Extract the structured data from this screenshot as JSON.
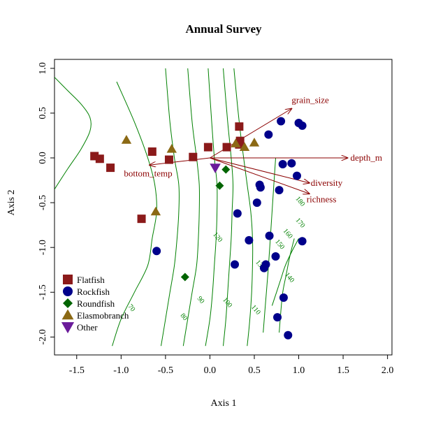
{
  "chart_data": {
    "type": "scatter",
    "title": "Annual Survey",
    "xlabel": "Axis 1",
    "ylabel": "Axis 2",
    "xlim": [
      -1.75,
      2.05
    ],
    "ylim": [
      -2.2,
      1.1
    ],
    "xticks": [
      -1.5,
      -1.0,
      -0.5,
      0.0,
      0.5,
      1.0,
      1.5,
      2.0
    ],
    "xtick_labels": [
      "-1.5",
      "-1.0",
      "-0.5",
      "0.0",
      "0.5",
      "1.0",
      "1.5",
      "2.0"
    ],
    "yticks": [
      -2.0,
      -1.5,
      -1.0,
      -0.5,
      0.0,
      0.5,
      1.0
    ],
    "ytick_labels": [
      "-2.0",
      "-1.5",
      "-1.0",
      "-0.5",
      "0.0",
      "0.5",
      "1.0"
    ],
    "grid": false,
    "legend_position": "bottom-left",
    "colors": {
      "Flatfish": "#8b1a1a",
      "Rockfish": "#00008b",
      "Roundfish": "#006400",
      "Elasmobranch": "#8b6914",
      "Other": "#6a1b9a",
      "contour": "#008000",
      "arrow": "#8b0000"
    },
    "series": [
      {
        "name": "Flatfish",
        "marker": "square",
        "x": [
          -1.3,
          -1.24,
          -1.12,
          -0.77,
          -0.65,
          -0.46,
          -0.19,
          -0.02,
          0.19,
          0.33,
          0.34,
          0.33
        ],
        "y": [
          0.02,
          -0.01,
          -0.11,
          -0.68,
          0.07,
          -0.02,
          0.01,
          0.12,
          0.12,
          0.15,
          0.19,
          0.35
        ]
      },
      {
        "name": "Rockfish",
        "marker": "circle",
        "x": [
          0.8,
          0.66,
          1.0,
          1.04,
          0.82,
          0.92,
          0.98,
          0.57,
          0.56,
          0.78,
          0.53,
          0.31,
          0.44,
          0.67,
          1.04,
          0.74,
          0.63,
          0.28,
          0.61,
          0.83,
          0.76,
          0.88,
          -0.6
        ],
        "y": [
          0.41,
          0.26,
          0.39,
          0.36,
          -0.07,
          -0.06,
          -0.2,
          -0.33,
          -0.3,
          -0.36,
          -0.5,
          -0.62,
          -0.92,
          -0.87,
          -0.93,
          -1.1,
          -1.19,
          -1.19,
          -1.23,
          -1.56,
          -1.78,
          -1.98,
          -1.04
        ]
      },
      {
        "name": "Roundfish",
        "marker": "diamond",
        "x": [
          0.18,
          0.11,
          -0.28
        ],
        "y": [
          -0.13,
          -0.31,
          -1.33
        ]
      },
      {
        "name": "Elasmobranch",
        "marker": "triangle-up",
        "x": [
          -0.94,
          -0.43,
          -0.61,
          0.29,
          0.39,
          0.5
        ],
        "y": [
          0.2,
          0.1,
          -0.6,
          0.16,
          0.12,
          0.17
        ]
      },
      {
        "name": "Other",
        "marker": "triangle-down",
        "x": [
          0.06
        ],
        "y": [
          -0.11
        ]
      }
    ],
    "vectors": [
      {
        "label": "grain_size",
        "x": 0.92,
        "y": 0.55
      },
      {
        "label": "depth_m",
        "x": 1.55,
        "y": 0.0
      },
      {
        "label": "bottom_temp",
        "x": -0.68,
        "y": -0.08
      },
      {
        "label": "diversity",
        "x": 1.12,
        "y": -0.28
      },
      {
        "label": "richness",
        "x": 1.12,
        "y": -0.4
      }
    ],
    "contour_labels": [
      {
        "label": "70",
        "x": -0.9,
        "y": -1.69
      },
      {
        "label": "80",
        "x": -0.31,
        "y": -1.79
      },
      {
        "label": "90",
        "x": -0.12,
        "y": -1.6
      },
      {
        "label": "100",
        "x": 0.18,
        "y": -1.63
      },
      {
        "label": "110",
        "x": 0.5,
        "y": -1.71
      },
      {
        "label": "120",
        "x": 0.07,
        "y": -0.9
      },
      {
        "label": "130",
        "x": 0.55,
        "y": -1.21
      },
      {
        "label": "140",
        "x": 0.88,
        "y": -1.35
      },
      {
        "label": "150",
        "x": 0.77,
        "y": -0.98
      },
      {
        "label": "160",
        "x": 0.86,
        "y": -0.86
      },
      {
        "label": "170",
        "x": 1.0,
        "y": -0.74
      },
      {
        "label": "180",
        "x": 1.0,
        "y": -0.5
      }
    ],
    "contours": [
      {
        "x": [
          -1.75,
          -1.6,
          -1.45,
          -1.35,
          -1.35,
          -1.45,
          -1.6,
          -1.75
        ],
        "y": [
          -0.35,
          -0.12,
          0.1,
          0.3,
          0.45,
          0.6,
          0.75,
          0.9
        ]
      },
      {
        "x": [
          -1.1,
          -1.0,
          -0.85,
          -0.7,
          -0.65,
          -0.6,
          -0.62,
          -0.7,
          -0.85,
          -1.05
        ],
        "y": [
          -2.1,
          -1.8,
          -1.5,
          -1.2,
          -0.9,
          -0.6,
          -0.3,
          0.0,
          0.4,
          0.85
        ]
      },
      {
        "x": [
          -0.55,
          -0.5,
          -0.45,
          -0.4,
          -0.37,
          -0.35,
          -0.35,
          -0.4,
          -0.45,
          -0.5
        ],
        "y": [
          -2.1,
          -1.8,
          -1.5,
          -1.2,
          -0.9,
          -0.6,
          -0.3,
          0.0,
          0.4,
          1.0
        ]
      },
      {
        "x": [
          -0.3,
          -0.25,
          -0.2,
          -0.15,
          -0.13,
          -0.12,
          -0.12,
          -0.15,
          -0.2,
          -0.25
        ],
        "y": [
          -2.1,
          -1.8,
          -1.5,
          -1.2,
          -0.9,
          -0.6,
          -0.3,
          0.0,
          0.4,
          1.0
        ]
      },
      {
        "x": [
          -0.05,
          0.0,
          0.03,
          0.05,
          0.07,
          0.08,
          0.08,
          0.05,
          0.02,
          -0.02
        ],
        "y": [
          -2.1,
          -1.8,
          -1.5,
          -1.2,
          -0.9,
          -0.6,
          -0.3,
          0.0,
          0.4,
          1.0
        ]
      },
      {
        "x": [
          0.15,
          0.18,
          0.2,
          0.22,
          0.24,
          0.25,
          0.26,
          0.24,
          0.2,
          0.15
        ],
        "y": [
          -2.1,
          -1.8,
          -1.5,
          -1.2,
          -0.9,
          -0.6,
          -0.3,
          0.0,
          0.4,
          1.0
        ]
      },
      {
        "x": [
          0.42,
          0.45,
          0.47,
          0.48,
          0.48,
          0.46,
          0.42,
          0.38,
          0.33,
          0.27
        ],
        "y": [
          -2.1,
          -1.8,
          -1.5,
          -1.2,
          -0.9,
          -0.6,
          -0.3,
          0.0,
          0.4,
          1.0
        ]
      },
      {
        "x": [
          0.6,
          0.62,
          0.64,
          0.66,
          0.68,
          0.7,
          0.72,
          0.74
        ],
        "y": [
          -1.95,
          -1.7,
          -1.45,
          -1.2,
          -0.9,
          -0.6,
          -0.3,
          0.0
        ]
      },
      {
        "x": [
          0.78,
          0.8,
          0.82,
          0.86,
          0.9,
          0.95
        ],
        "y": [
          -1.95,
          -1.7,
          -1.5,
          -1.3,
          -1.1,
          -0.9
        ]
      },
      {
        "x": [
          0.7,
          0.75,
          0.8,
          0.85,
          0.92,
          1.0
        ],
        "y": [
          -1.65,
          -1.5,
          -1.35,
          -1.2,
          -1.05,
          -0.9
        ]
      }
    ]
  }
}
